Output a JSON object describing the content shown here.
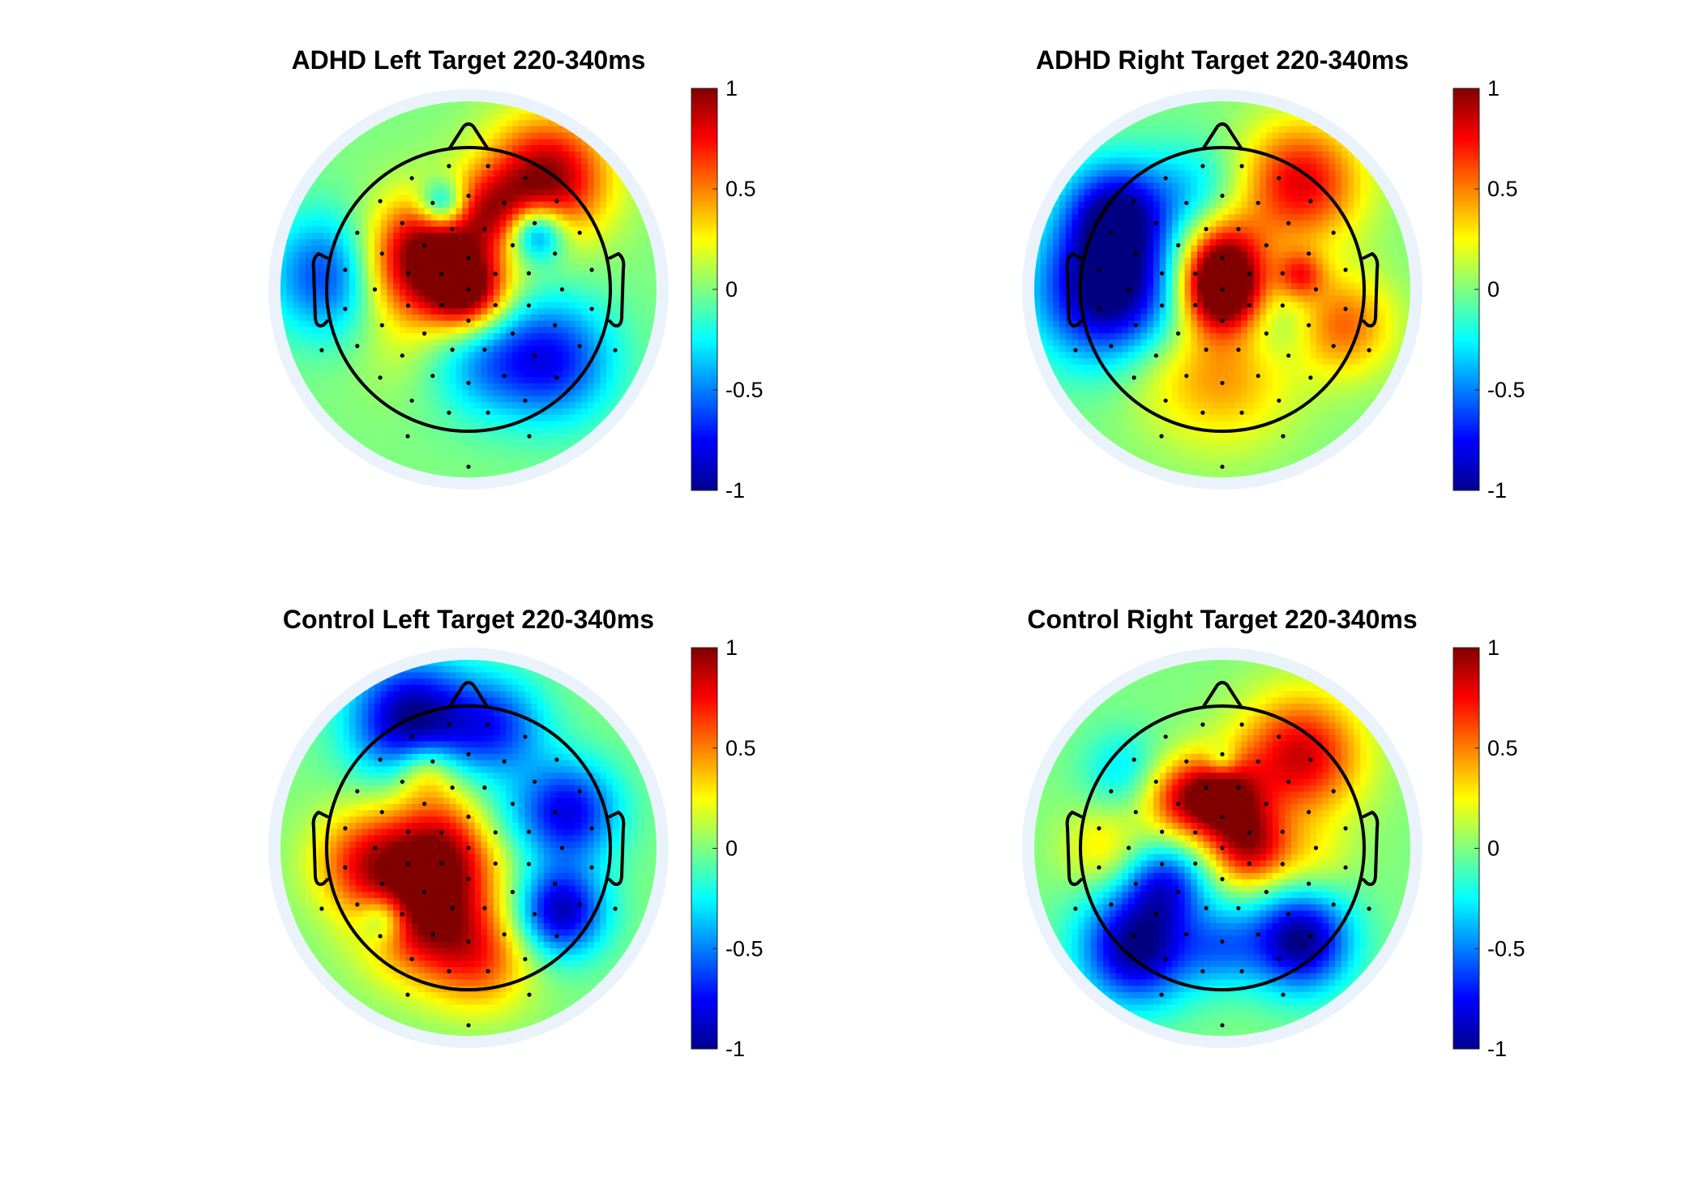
{
  "chart_data": [
    {
      "type": "heatmap",
      "title": "ADHD Left Target 220-340ms",
      "colorbar": {
        "ticks": [
          1,
          0.5,
          0,
          -0.5,
          -1
        ],
        "tick_labels": [
          "1",
          "0.5",
          "0",
          "-0.5",
          "-1"
        ],
        "clim": [
          -1,
          1
        ],
        "colormap": "jet"
      },
      "blobs": [
        {
          "x": 0.0,
          "y": -0.02,
          "r": 0.2,
          "v": 1.0
        },
        {
          "x": -0.45,
          "y": 0.15,
          "r": 0.3,
          "v": 0.85
        },
        {
          "x": -0.2,
          "y": 0.35,
          "r": 0.25,
          "v": 0.5
        },
        {
          "x": 0.55,
          "y": 0.78,
          "r": 0.3,
          "v": 1.0
        },
        {
          "x": -0.18,
          "y": 0.6,
          "r": 0.12,
          "v": -0.75
        },
        {
          "x": 0.48,
          "y": 0.4,
          "r": 0.14,
          "v": -0.85
        },
        {
          "x": -0.95,
          "y": 0.1,
          "r": 0.3,
          "v": -0.75
        },
        {
          "x": 0.6,
          "y": -0.5,
          "r": 0.3,
          "v": -0.7
        },
        {
          "x": 0.1,
          "y": -0.5,
          "r": 0.28,
          "v": -0.4
        },
        {
          "x": -0.5,
          "y": -0.45,
          "r": 0.25,
          "v": 0.1
        },
        {
          "x": 0.15,
          "y": 0.55,
          "r": 0.2,
          "v": 0.5
        }
      ]
    },
    {
      "type": "heatmap",
      "title": "ADHD Right Target 220-340ms",
      "colorbar": {
        "ticks": [
          1,
          0.5,
          0,
          -0.5,
          -1
        ],
        "tick_labels": [
          "1",
          "0.5",
          "0",
          "-0.5",
          "-1"
        ],
        "clim": [
          -1,
          1
        ],
        "colormap": "jet"
      },
      "blobs": [
        {
          "x": 0.0,
          "y": -0.02,
          "r": 0.2,
          "v": 1.1
        },
        {
          "x": 0.0,
          "y": 0.25,
          "r": 0.22,
          "v": 0.7
        },
        {
          "x": -0.8,
          "y": 0.0,
          "r": 0.35,
          "v": -1.1
        },
        {
          "x": -0.75,
          "y": 0.55,
          "r": 0.25,
          "v": -0.8
        },
        {
          "x": 0.55,
          "y": 0.75,
          "r": 0.3,
          "v": 0.8
        },
        {
          "x": 0.55,
          "y": 0.1,
          "r": 0.12,
          "v": 0.55
        },
        {
          "x": 0.0,
          "y": -0.6,
          "r": 0.35,
          "v": 0.45
        },
        {
          "x": -0.5,
          "y": -0.6,
          "r": 0.25,
          "v": 0.1
        },
        {
          "x": 0.85,
          "y": -0.25,
          "r": 0.25,
          "v": 0.55
        },
        {
          "x": -0.2,
          "y": 0.7,
          "r": 0.25,
          "v": -0.3
        },
        {
          "x": 0.4,
          "y": -0.25,
          "r": 0.2,
          "v": -0.2
        }
      ]
    },
    {
      "type": "heatmap",
      "title": "Control Left Target 220-340ms",
      "colorbar": {
        "ticks": [
          1,
          0.5,
          0,
          -0.5,
          -1
        ],
        "tick_labels": [
          "1",
          "0.5",
          "0",
          "-0.5",
          "-1"
        ],
        "clim": [
          -1,
          1
        ],
        "colormap": "jet"
      },
      "blobs": [
        {
          "x": -0.2,
          "y": 0.0,
          "r": 0.3,
          "v": 0.85
        },
        {
          "x": -0.3,
          "y": -0.5,
          "r": 0.3,
          "v": 0.85
        },
        {
          "x": -0.75,
          "y": -0.1,
          "r": 0.25,
          "v": 0.6
        },
        {
          "x": -0.4,
          "y": 0.9,
          "r": 0.3,
          "v": -1.0
        },
        {
          "x": 0.2,
          "y": 0.85,
          "r": 0.25,
          "v": -0.6
        },
        {
          "x": 0.7,
          "y": 0.25,
          "r": 0.25,
          "v": -0.8
        },
        {
          "x": 0.65,
          "y": -0.45,
          "r": 0.22,
          "v": -0.9
        },
        {
          "x": -0.3,
          "y": 0.55,
          "r": 0.15,
          "v": 0.45
        },
        {
          "x": 0.1,
          "y": -0.8,
          "r": 0.25,
          "v": 0.5
        },
        {
          "x": 0.2,
          "y": 0.2,
          "r": 0.2,
          "v": -0.2
        },
        {
          "x": -0.6,
          "y": -0.5,
          "r": 0.12,
          "v": -0.5
        }
      ]
    },
    {
      "type": "heatmap",
      "title": "Control Right Target 220-340ms",
      "colorbar": {
        "ticks": [
          1,
          0.5,
          0,
          -0.5,
          -1
        ],
        "tick_labels": [
          "1",
          "0.5",
          "0",
          "-0.5",
          "-1"
        ],
        "clim": [
          -1,
          1
        ],
        "colormap": "jet"
      },
      "blobs": [
        {
          "x": 0.0,
          "y": 0.35,
          "r": 0.2,
          "v": 0.9
        },
        {
          "x": 0.2,
          "y": 0.0,
          "r": 0.2,
          "v": 0.8
        },
        {
          "x": 0.55,
          "y": 0.65,
          "r": 0.3,
          "v": 0.85
        },
        {
          "x": -0.3,
          "y": 0.35,
          "r": 0.2,
          "v": 0.6
        },
        {
          "x": -0.6,
          "y": -0.7,
          "r": 0.28,
          "v": -1.0
        },
        {
          "x": 0.55,
          "y": -0.65,
          "r": 0.25,
          "v": -1.0
        },
        {
          "x": -0.4,
          "y": -0.25,
          "r": 0.2,
          "v": -0.6
        },
        {
          "x": 0.0,
          "y": -0.7,
          "r": 0.2,
          "v": -0.4
        },
        {
          "x": -0.7,
          "y": 0.55,
          "r": 0.2,
          "v": -0.3
        },
        {
          "x": -0.85,
          "y": 0.0,
          "r": 0.2,
          "v": 0.3
        },
        {
          "x": 0.65,
          "y": -0.1,
          "r": 0.2,
          "v": 0.2
        },
        {
          "x": 0.0,
          "y": 0.62,
          "r": 0.08,
          "v": -0.3
        }
      ]
    }
  ]
}
